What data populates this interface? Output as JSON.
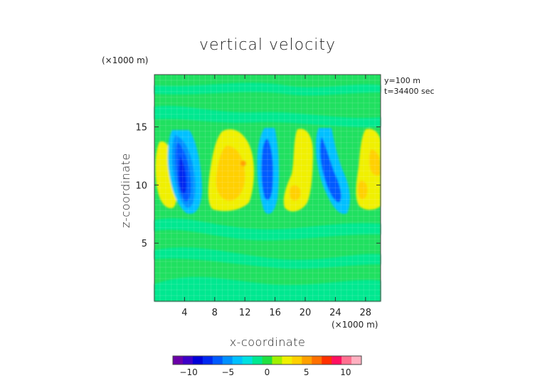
{
  "chart_data": {
    "type": "heatmap",
    "title": "vertical velocity",
    "xlabel": "x-coordinate",
    "ylabel": "z-coordinate",
    "x_unit": "(×1000 m)",
    "y_unit": "(×1000 m)",
    "annotation_lines": [
      "y=100 m",
      "t=34400 sec"
    ],
    "xlim": [
      0,
      30
    ],
    "ylim": [
      0,
      19.5
    ],
    "x_ticks": [
      4,
      8,
      12,
      16,
      20,
      24,
      28
    ],
    "y_ticks": [
      5,
      10,
      15
    ],
    "colorbar": {
      "range": [
        -12,
        12
      ],
      "ticks": [
        -10,
        -5,
        0,
        5,
        10
      ],
      "colors": [
        "#6a00a8",
        "#3c00c8",
        "#0000d8",
        "#0028f0",
        "#005aff",
        "#0090ff",
        "#00c0ff",
        "#00e0e0",
        "#00e890",
        "#20e040",
        "#a0f000",
        "#f0f000",
        "#ffd000",
        "#ffa000",
        "#ff7000",
        "#ff3000",
        "#ff1060",
        "#ff7090",
        "#ffb0c0"
      ]
    },
    "features": [
      {
        "kind": "updraft",
        "x": 1.8,
        "z": 10.5,
        "peak": 4.5
      },
      {
        "kind": "downdraft",
        "x": 4.0,
        "z": 11.5,
        "peak": -9.5
      },
      {
        "kind": "updraft",
        "x": 10.5,
        "z": 12.0,
        "peak": 5.5
      },
      {
        "kind": "downdraft",
        "x": 14.8,
        "z": 11.5,
        "peak": -7.5
      },
      {
        "kind": "updraft",
        "x": 19.8,
        "z": 11.5,
        "peak": 4.5
      },
      {
        "kind": "downdraft",
        "x": 23.0,
        "z": 11.5,
        "peak": -8.0
      },
      {
        "kind": "updraft",
        "x": 28.5,
        "z": 11.5,
        "peak": 4.5
      }
    ]
  }
}
